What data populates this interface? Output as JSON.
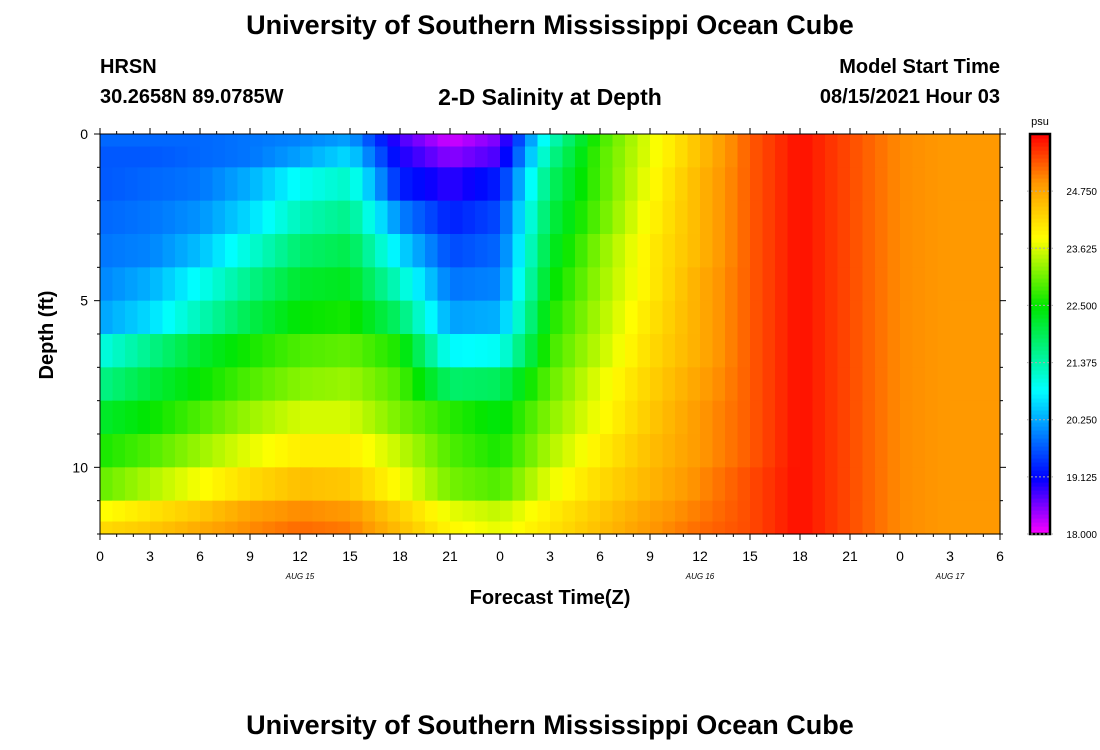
{
  "page": {
    "title_top": "University of Southern Mississippi Ocean Cube",
    "title_bottom": "University of Southern Mississippi Ocean Cube",
    "station": "HRSN",
    "coords": "30.2658N  89.0785W",
    "plot_title": "2-D Salinity at Depth",
    "model_start_label": "Model Start Time",
    "model_start_value": "08/15/2021 Hour 03"
  },
  "chart_data": {
    "type": "heatmap",
    "title": "2-D Salinity at Depth",
    "xlabel": "Forecast Time(Z)",
    "ylabel": "Depth (ft)",
    "x_range_hours": [
      0,
      54
    ],
    "y_range_ft": [
      0,
      12
    ],
    "x_tick_values": [
      0,
      3,
      6,
      9,
      12,
      15,
      18,
      21,
      24,
      27,
      30,
      33,
      36,
      39,
      42,
      45,
      48,
      51,
      54
    ],
    "x_tick_labels": [
      "0",
      "3",
      "6",
      "9",
      "12",
      "15",
      "18",
      "21",
      "0",
      "3",
      "6",
      "9",
      "12",
      "15",
      "18",
      "21",
      "0",
      "3",
      "6"
    ],
    "y_tick_values": [
      0,
      5,
      10
    ],
    "y_tick_labels": [
      "0",
      "5",
      "10"
    ],
    "date_labels": [
      {
        "hour": 12,
        "label": "AUG 15"
      },
      {
        "hour": 36,
        "label": "AUG 16"
      },
      {
        "hour": 51,
        "label": "AUG 17"
      }
    ],
    "colorbar": {
      "unit": "psu",
      "min": 18.0,
      "max": 25.875,
      "tick_values": [
        18.0,
        19.125,
        20.25,
        21.375,
        22.5,
        23.625,
        24.75
      ],
      "tick_labels": [
        "18.000",
        "19.125",
        "20.250",
        "21.375",
        "22.500",
        "23.625",
        "24.750"
      ]
    },
    "depth_levels_ft": [
      0.25,
      0.5,
      1.5,
      2.5,
      3.5,
      4.5,
      5.5,
      6.5,
      7.5,
      8.5,
      9.5,
      10.5,
      11.5,
      11.75
    ],
    "profile_hours": [
      0,
      3,
      6,
      9,
      12,
      15,
      18,
      21,
      24,
      27,
      30,
      33,
      36,
      39,
      42,
      45,
      48,
      51,
      54
    ],
    "values": [
      [
        19.8,
        19.8,
        19.8,
        19.9,
        20.0,
        20.2,
        18.8,
        18.2,
        18.6,
        21.2,
        22.8,
        23.7,
        24.5,
        25.3,
        25.8,
        25.4,
        25.0,
        24.9,
        24.9
      ],
      [
        19.7,
        19.7,
        19.8,
        19.9,
        20.2,
        20.6,
        19.0,
        18.5,
        18.8,
        21.5,
        22.9,
        23.7,
        24.5,
        25.3,
        25.8,
        25.4,
        25.0,
        24.9,
        24.9
      ],
      [
        19.7,
        19.8,
        19.9,
        20.3,
        20.9,
        21.2,
        19.3,
        18.9,
        19.3,
        21.8,
        22.9,
        23.8,
        24.6,
        25.3,
        25.8,
        25.4,
        25.0,
        24.9,
        24.9
      ],
      [
        19.8,
        19.9,
        20.1,
        20.6,
        21.3,
        21.6,
        20.0,
        19.3,
        19.6,
        22.0,
        23.0,
        23.9,
        24.6,
        25.3,
        25.8,
        25.4,
        25.0,
        24.9,
        24.9
      ],
      [
        19.9,
        20.0,
        20.4,
        21.1,
        21.8,
        22.0,
        20.6,
        19.6,
        19.8,
        22.2,
        23.2,
        24.0,
        24.6,
        25.3,
        25.8,
        25.4,
        25.0,
        24.9,
        24.9
      ],
      [
        20.0,
        20.3,
        20.9,
        21.6,
        22.2,
        22.3,
        21.2,
        19.9,
        20.0,
        22.4,
        23.3,
        24.0,
        24.7,
        25.3,
        25.8,
        25.4,
        25.0,
        24.9,
        24.9
      ],
      [
        20.2,
        20.6,
        21.3,
        22.0,
        22.5,
        22.6,
        21.8,
        20.2,
        20.3,
        22.6,
        23.4,
        24.1,
        24.7,
        25.3,
        25.8,
        25.4,
        25.0,
        24.9,
        24.9
      ],
      [
        21.0,
        21.6,
        22.2,
        22.6,
        22.9,
        23.0,
        22.6,
        20.8,
        20.9,
        22.8,
        23.5,
        24.2,
        24.7,
        25.3,
        25.8,
        25.4,
        25.0,
        24.9,
        24.9
      ],
      [
        21.6,
        22.1,
        22.5,
        22.9,
        23.2,
        23.3,
        22.9,
        21.8,
        21.9,
        23.0,
        23.7,
        24.3,
        24.8,
        25.3,
        25.8,
        25.4,
        25.0,
        24.9,
        24.9
      ],
      [
        22.2,
        22.5,
        22.9,
        23.3,
        23.6,
        23.6,
        23.1,
        22.7,
        22.4,
        23.2,
        23.8,
        24.4,
        24.9,
        25.3,
        25.8,
        25.4,
        25.0,
        24.9,
        24.9
      ],
      [
        22.6,
        22.9,
        23.3,
        23.7,
        24.0,
        24.0,
        23.5,
        22.9,
        22.6,
        23.4,
        24.0,
        24.5,
        24.9,
        25.3,
        25.8,
        25.4,
        25.0,
        24.9,
        24.9
      ],
      [
        23.0,
        23.4,
        23.8,
        24.2,
        24.5,
        24.4,
        23.8,
        23.1,
        22.9,
        23.7,
        24.2,
        24.6,
        25.0,
        25.4,
        25.8,
        25.4,
        25.0,
        24.9,
        24.9
      ],
      [
        23.8,
        24.1,
        24.4,
        24.8,
        25.0,
        24.9,
        24.3,
        23.7,
        23.5,
        24.0,
        24.4,
        24.8,
        25.1,
        25.4,
        25.8,
        25.4,
        25.0,
        24.9,
        24.9
      ],
      [
        24.2,
        24.4,
        24.7,
        25.0,
        25.2,
        25.1,
        24.5,
        23.9,
        23.7,
        24.1,
        24.5,
        24.9,
        25.2,
        25.4,
        25.8,
        25.4,
        25.0,
        24.9,
        24.9
      ]
    ]
  }
}
